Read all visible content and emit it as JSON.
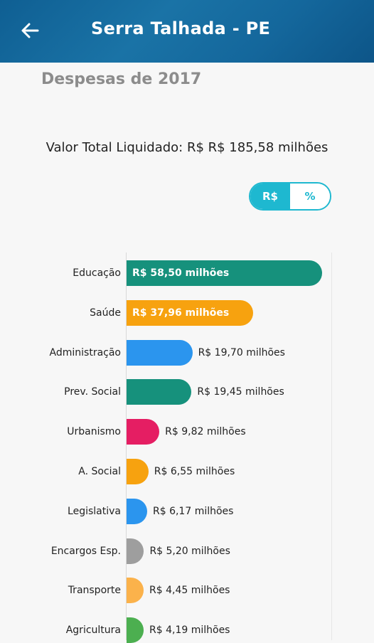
{
  "appbar": {
    "title": "Serra Talhada - PE",
    "back_icon": "arrow-left-icon"
  },
  "subtitle": "Despesas de 2017",
  "total_label": "Valor Total Liquidado: R$ R$ 185,58 milhões",
  "toggle": {
    "options": [
      "R$",
      "%"
    ],
    "selected": "R$",
    "accent_color": "#1eb8d0"
  },
  "chart_data": {
    "type": "bar",
    "orientation": "horizontal",
    "xlim": [
      0,
      60
    ],
    "categories": [
      "Educação",
      "Saúde",
      "Administração",
      "Prev. Social",
      "Urbanismo",
      "A. Social",
      "Legislativa",
      "Encargos Esp.",
      "Transporte",
      "Agricultura"
    ],
    "values": [
      58.5,
      37.96,
      19.7,
      19.45,
      9.82,
      6.55,
      6.17,
      5.2,
      4.45,
      4.19
    ],
    "labels": [
      "R$ 58,50 milhões",
      "R$ 37,96 milhões",
      "R$ 19,70 milhões",
      "R$ 19,45 milhões",
      "R$ 9,82 milhões",
      "R$ 6,55 milhões",
      "R$ 6,17 milhões",
      "R$ 5,20 milhões",
      "R$ 4,45 milhões",
      "R$ 4,19 milhões"
    ],
    "colors": [
      "#16917c",
      "#f7a20f",
      "#2b95ee",
      "#16917c",
      "#e51e63",
      "#f7a20f",
      "#2b95ee",
      "#9e9e9e",
      "#fbb24b",
      "#4caf50"
    ],
    "label_inside": [
      true,
      true,
      false,
      false,
      false,
      false,
      false,
      false,
      false,
      false
    ]
  }
}
